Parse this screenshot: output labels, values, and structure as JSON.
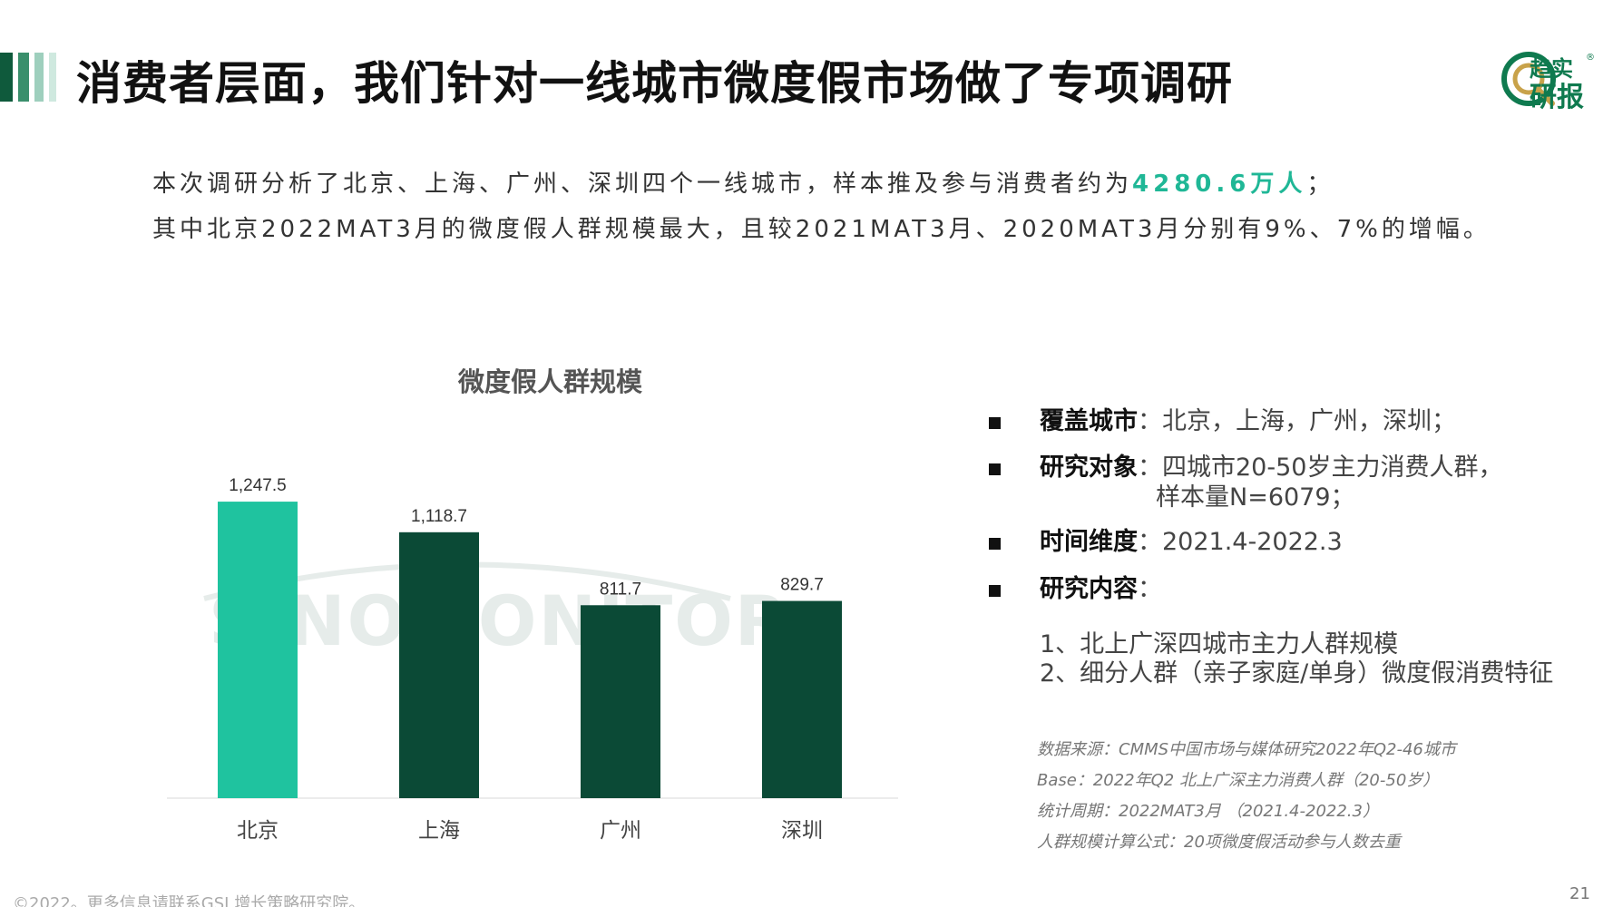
{
  "header": {
    "title": "消费者层面，我们针对一线城市微度假市场做了专项调研",
    "bar_colors": [
      "#0f5a3c",
      "#3a8f6c",
      "#9ecfbd",
      "#cfe9df"
    ]
  },
  "logo": {
    "line1": "趋实",
    "line2": "研报",
    "reg": "®",
    "color": "#0f7a4f"
  },
  "intro": {
    "line1_pre": "本次调研分析了北京、上海、广州、深圳四个一线城市，样本推及参与消费者约为",
    "line1_highlight": "4280.6万人",
    "line1_post": "；",
    "line2": "其中北京2022MAT3月的微度假人群规模最大，且较2021MAT3月、2020MAT3月分别有9%、7%的增幅。",
    "highlight_color": "#1fb796"
  },
  "chart_data": {
    "type": "bar",
    "title": "微度假人群规模",
    "categories": [
      "北京",
      "上海",
      "广州",
      "深圳"
    ],
    "values": [
      1247.5,
      1118.7,
      811.7,
      829.7
    ],
    "labels": [
      "1,247.5",
      "1,118.7",
      "811.7",
      "829.7"
    ],
    "colors": [
      "#1fc39f",
      "#0b4a36",
      "#0b4a36",
      "#0b4a36"
    ],
    "ylim": [
      0,
      1450
    ],
    "grid": false,
    "legend": "none"
  },
  "watermark": {
    "text": "SINOMONITOR"
  },
  "info": {
    "cities_key": "覆盖城市",
    "cities_val": "：北京，上海，广州，深圳；",
    "object_key": "研究对象",
    "object_val_1": "：四城市20-50岁主力消费人群，",
    "object_val_2": "样本量N=6079；",
    "time_key": "时间维度",
    "time_val": "：2021.4-2022.3",
    "content_key": "研究内容",
    "content_val": "：",
    "content_items": [
      "1、北上广深四城市主力人群规模",
      "2、细分人群（亲子家庭/单身）微度假消费特征"
    ]
  },
  "sources": {
    "line1": "数据来源：CMMS中国市场与媒体研究2022年Q2-46城市",
    "line2": "Base：2022年Q2 北上广深主力消费人群（20-50岁）",
    "line3": "统计周期：2022MAT3月 （2021.4-2022.3）",
    "line4": "人群规模计算公式：20项微度假活动参与人数去重"
  },
  "footer": {
    "copyright": "©2022。更多信息请联系GSI 增长策略研究院。",
    "page": "21"
  }
}
